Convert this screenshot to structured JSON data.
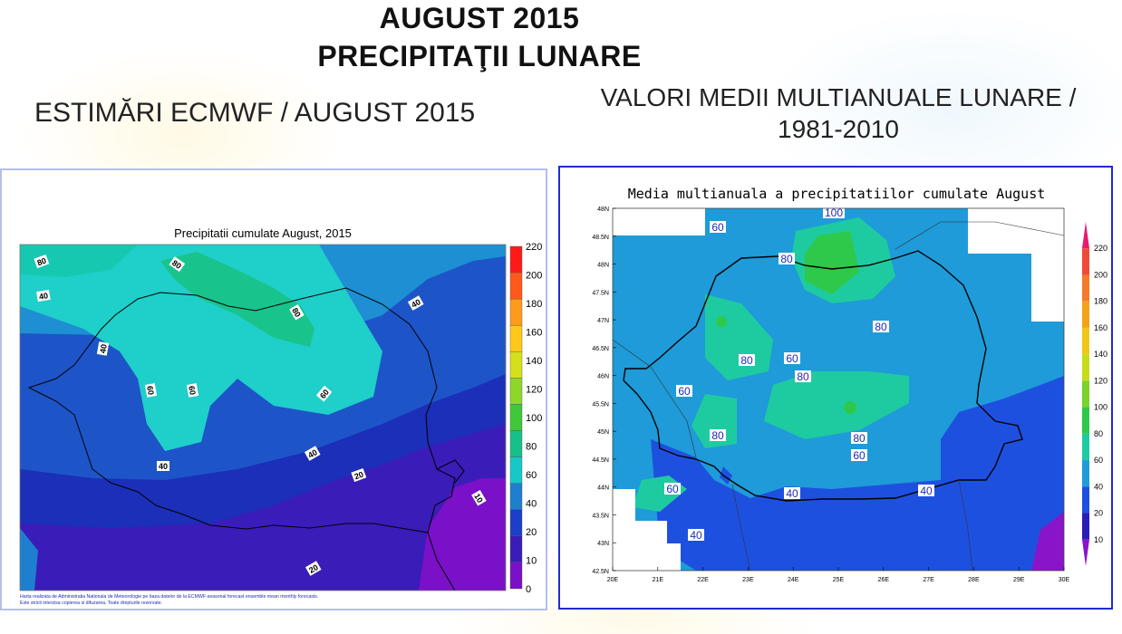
{
  "title_line1": "AUGUST 2015",
  "title_line2": "PRECIPITAŢII LUNARE",
  "subtitle_left": "ESTIMĂRI ECMWF / AUGUST 2015",
  "subtitle_right_line1": "VALORI MEDII MULTIANUALE LUNARE /",
  "subtitle_right_line2": "1981-2010",
  "left_map": {
    "title": "Precipitatii cumulate August, 2015",
    "footnote_line1": "Harta realizata de Administratia Nationala de Meteorologie pe baza datelor de la ECMWF-seasonal forecast ensemble mean monthly forecasts.",
    "footnote_line2": "Este stricti interzisa copierea si difuzarea. Toate drepturile rezervate.",
    "colorbar_labels": [
      "220",
      "200",
      "180",
      "160",
      "140",
      "120",
      "100",
      "80",
      "60",
      "40",
      "20",
      "10",
      "0"
    ],
    "colorbar_colors": [
      "#ff1a1a",
      "#ff5a1a",
      "#ff9a1a",
      "#ffc81a",
      "#d6e01a",
      "#8fd62a",
      "#3fc83a",
      "#17c08a",
      "#17c8c8",
      "#1e7fd0",
      "#1c3ec8",
      "#3a1cb8",
      "#7a10c8"
    ],
    "contour_labels": [
      "80",
      "80",
      "40",
      "40",
      "40",
      "60",
      "80",
      "60",
      "80",
      "60",
      "40",
      "40",
      "20",
      "10",
      "20"
    ]
  },
  "right_map": {
    "title": "Media multianuala a precipitatiilor cumulate August",
    "lat_labels": [
      "48N",
      "48.5N",
      "48N",
      "47.5N",
      "47N",
      "46.5N",
      "46N",
      "45.5N",
      "45N",
      "44.5N",
      "44N",
      "43.5N",
      "43N",
      "42.5N"
    ],
    "lon_labels": [
      "20E",
      "21E",
      "22E",
      "23E",
      "24E",
      "25E",
      "26E",
      "27E",
      "28E",
      "29E",
      "30E"
    ],
    "colorbar_labels": [
      "220",
      "200",
      "180",
      "160",
      "140",
      "120",
      "100",
      "80",
      "60",
      "40",
      "20",
      "10"
    ],
    "colorbar_colors": [
      "#e81a6e",
      "#f04a3a",
      "#f57a2a",
      "#f5a21a",
      "#f0c81a",
      "#c8dc1a",
      "#7ad22a",
      "#2ec84a",
      "#1ecba0",
      "#1e9bd8",
      "#1e50e0",
      "#2a1eb8",
      "#8a14c8"
    ],
    "contour_labels": [
      "100",
      "60",
      "80",
      "80",
      "80",
      "60",
      "80",
      "60",
      "80",
      "80",
      "60",
      "60",
      "40",
      "40",
      "40"
    ]
  }
}
